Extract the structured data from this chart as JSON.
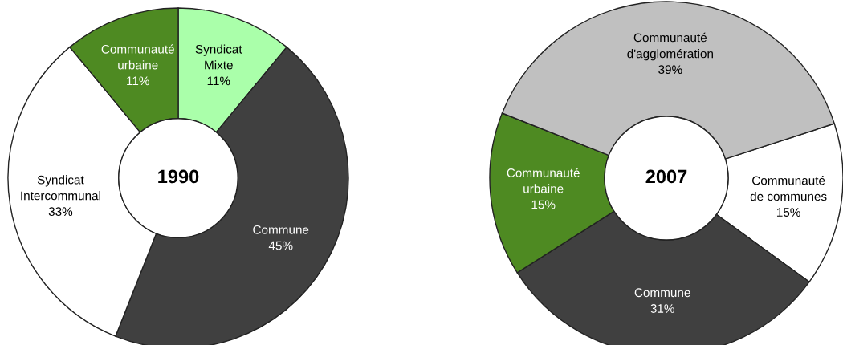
{
  "chart_data": [
    {
      "type": "donut",
      "title": "1990",
      "categories": [
        "Syndicat\nMixte",
        "Commune",
        "Syndicat\nIntercommunal",
        "Communauté\nurbaine"
      ],
      "values": [
        11,
        45,
        33,
        11
      ],
      "value_labels": [
        "11%",
        "45%",
        "33%",
        "11%"
      ],
      "colors": [
        "#aaffaa",
        "#404040",
        "#ffffff",
        "#4e8a22"
      ],
      "legend": false
    },
    {
      "type": "donut",
      "title": "2007",
      "categories": [
        "Communauté\nde communes",
        "Commune",
        "Communauté\nurbaine",
        "Communauté\nd'agglomération"
      ],
      "values": [
        15,
        31,
        15,
        39
      ],
      "value_labels": [
        "15%",
        "31%",
        "15%",
        "39%"
      ],
      "colors": [
        "#ffffff",
        "#404040",
        "#4e8a22",
        "#c0c0c0"
      ],
      "legend": false
    }
  ]
}
